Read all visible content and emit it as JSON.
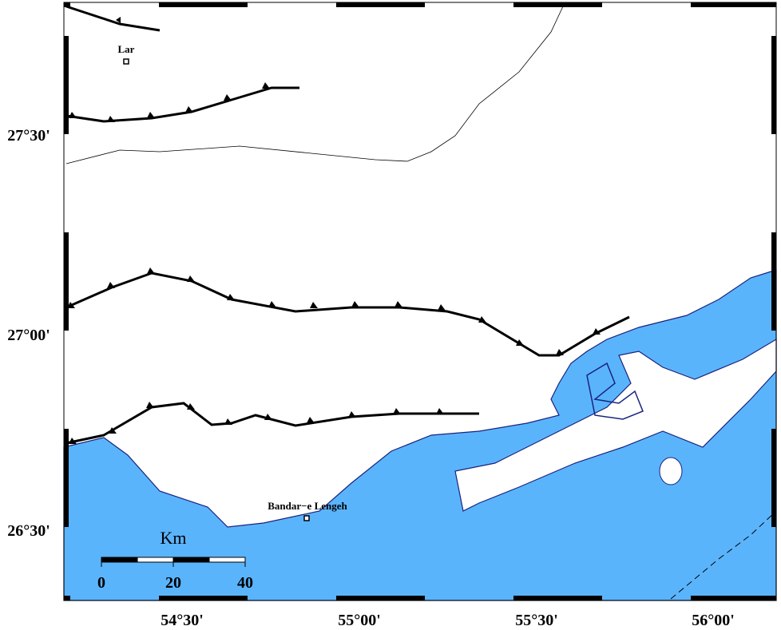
{
  "map": {
    "lat_labels": [
      "27°30'",
      "27°00'",
      "26°30'"
    ],
    "lon_labels": [
      "54°30'",
      "55°00'",
      "55°30'",
      "56°00'"
    ],
    "places": [
      {
        "label": "Lar"
      },
      {
        "label": "Bandar−e Lengeh"
      }
    ],
    "scale": {
      "unit": "Km",
      "ticks": [
        0,
        20,
        40
      ]
    }
  }
}
